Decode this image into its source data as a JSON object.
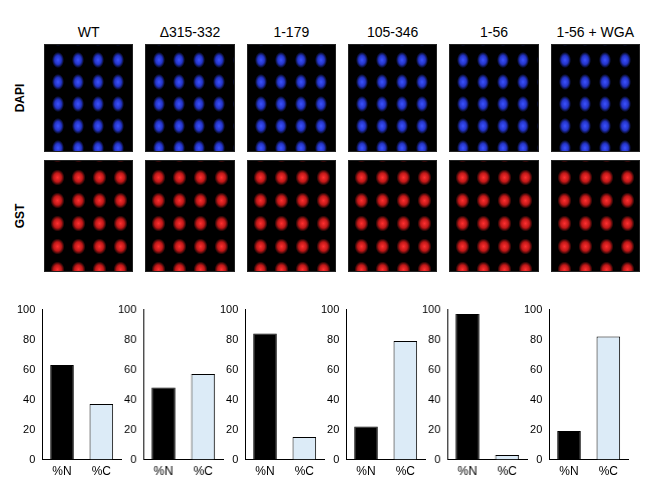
{
  "figure": {
    "columns": [
      "WT",
      "Δ315-332",
      "1-179",
      "105-346",
      "1-56",
      "1-56 + WGA"
    ],
    "rows": [
      "DAPI",
      "GST"
    ]
  },
  "chart_data": [
    {
      "type": "bar",
      "categories": [
        "%N",
        "%C"
      ],
      "values": [
        63,
        37
      ],
      "colors": [
        "#000000",
        "#dcebf7"
      ],
      "ylim": [
        0,
        100
      ],
      "yticks": [
        0,
        20,
        40,
        60,
        80,
        100
      ],
      "grid": false
    },
    {
      "type": "bar",
      "categories": [
        "%N",
        "%C"
      ],
      "values": [
        48,
        57
      ],
      "colors": [
        "#000000",
        "#dcebf7"
      ],
      "ylim": [
        0,
        100
      ],
      "yticks": [
        0,
        20,
        40,
        60,
        80,
        100
      ],
      "grid": false
    },
    {
      "type": "bar",
      "categories": [
        "%N",
        "%C"
      ],
      "values": [
        84,
        15
      ],
      "colors": [
        "#000000",
        "#dcebf7"
      ],
      "ylim": [
        0,
        100
      ],
      "yticks": [
        0,
        20,
        40,
        60,
        80,
        100
      ],
      "grid": false
    },
    {
      "type": "bar",
      "categories": [
        "%N",
        "%C"
      ],
      "values": [
        22,
        79
      ],
      "colors": [
        "#000000",
        "#dcebf7"
      ],
      "ylim": [
        0,
        100
      ],
      "yticks": [
        0,
        20,
        40,
        60,
        80,
        100
      ],
      "grid": false
    },
    {
      "type": "bar",
      "categories": [
        "%N",
        "%C"
      ],
      "values": [
        97,
        3
      ],
      "colors": [
        "#000000",
        "#dcebf7"
      ],
      "ylim": [
        0,
        100
      ],
      "yticks": [
        0,
        20,
        40,
        60,
        80,
        100
      ],
      "grid": false
    },
    {
      "type": "bar",
      "categories": [
        "%N",
        "%C"
      ],
      "values": [
        19,
        82
      ],
      "colors": [
        "#000000",
        "#dcebf7"
      ],
      "ylim": [
        0,
        100
      ],
      "yticks": [
        0,
        20,
        40,
        60,
        80,
        100
      ],
      "grid": false
    }
  ]
}
